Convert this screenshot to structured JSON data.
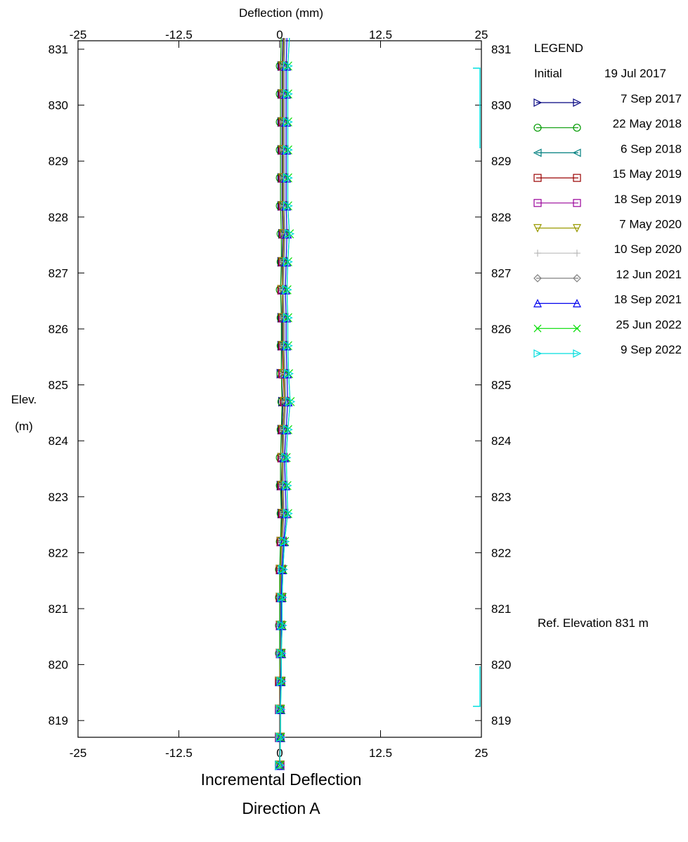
{
  "chart_data": {
    "type": "line",
    "top_axis_label": "Deflection (mm)",
    "y_axis_label_line1": "Elev.",
    "y_axis_label_line2": "(m)",
    "bottom_title_line1": "Incremental Deflection",
    "bottom_title_line2": "Direction  A",
    "legend_title": "LEGEND",
    "ref_note": "Ref. Elevation 831 m",
    "xlim": [
      -25,
      25
    ],
    "ylim": [
      818,
      831
    ],
    "x_ticks": [
      "-25",
      "-12.5",
      "0",
      "12.5",
      "25"
    ],
    "y_ticks": [
      "831",
      "830",
      "829",
      "828",
      "827",
      "826",
      "825",
      "824",
      "823",
      "822",
      "821",
      "820",
      "819"
    ],
    "initial": {
      "label": "Initial",
      "date": "19 Jul 2017"
    },
    "elevations": [
      818.2,
      818.7,
      819.2,
      819.7,
      820.2,
      820.7,
      821.2,
      821.7,
      822.2,
      822.7,
      823.2,
      823.7,
      824.2,
      824.7,
      825.2,
      825.7,
      826.2,
      826.7,
      827.2,
      827.7,
      828.2,
      828.7,
      829.2,
      829.7,
      830.2,
      830.7,
      831.2
    ],
    "series": [
      {
        "name": "7 Sep 2017",
        "color": "#00007f",
        "marker": "tri-right",
        "values": [
          0.0,
          0.0,
          0.0,
          0.0,
          0.1,
          0.1,
          0.1,
          0.1,
          0.2,
          0.3,
          0.2,
          0.3,
          0.3,
          0.4,
          0.2,
          0.3,
          0.3,
          0.3,
          0.3,
          0.4,
          0.3,
          0.3,
          0.3,
          0.3,
          0.3,
          0.3,
          0.4
        ]
      },
      {
        "name": "22 May 2018",
        "color": "#009900",
        "marker": "circle",
        "values": [
          0.0,
          0.0,
          0.0,
          0.0,
          0.0,
          0.0,
          0.0,
          0.0,
          0.1,
          0.2,
          0.1,
          0.1,
          0.2,
          0.3,
          0.2,
          0.2,
          0.2,
          0.1,
          0.2,
          0.2,
          0.1,
          0.1,
          0.1,
          0.1,
          0.1,
          0.1,
          0.2
        ]
      },
      {
        "name": "6 Sep 2018",
        "color": "#007f7f",
        "marker": "tri-left",
        "values": [
          0.0,
          0.0,
          0.0,
          0.1,
          0.1,
          0.1,
          0.1,
          0.2,
          0.3,
          0.5,
          0.4,
          0.4,
          0.5,
          0.7,
          0.6,
          0.5,
          0.5,
          0.4,
          0.5,
          0.6,
          0.5,
          0.5,
          0.5,
          0.5,
          0.5,
          0.5,
          0.6
        ]
      },
      {
        "name": "15 May 2019",
        "color": "#990000",
        "marker": "square-x",
        "values": [
          0.0,
          0.0,
          0.0,
          0.0,
          0.1,
          0.1,
          0.1,
          0.1,
          0.2,
          0.4,
          0.3,
          0.3,
          0.4,
          0.6,
          0.4,
          0.4,
          0.4,
          0.3,
          0.4,
          0.5,
          0.4,
          0.4,
          0.4,
          0.4,
          0.4,
          0.4,
          0.5
        ]
      },
      {
        "name": "18 Sep 2019",
        "color": "#990099",
        "marker": "square",
        "values": [
          0.0,
          0.0,
          0.0,
          0.1,
          0.1,
          0.1,
          0.2,
          0.2,
          0.3,
          0.5,
          0.4,
          0.4,
          0.5,
          0.7,
          0.5,
          0.5,
          0.5,
          0.4,
          0.5,
          0.6,
          0.5,
          0.5,
          0.5,
          0.5,
          0.5,
          0.5,
          0.6
        ]
      },
      {
        "name": "7 May 2020",
        "color": "#999900",
        "marker": "tri-down",
        "values": [
          0.0,
          0.0,
          0.0,
          0.0,
          0.1,
          0.1,
          0.1,
          0.1,
          0.2,
          0.4,
          0.3,
          0.3,
          0.4,
          0.6,
          0.5,
          0.4,
          0.4,
          0.3,
          0.4,
          0.5,
          0.4,
          0.4,
          0.4,
          0.4,
          0.4,
          0.4,
          0.5
        ]
      },
      {
        "name": "10 Sep 2020",
        "color": "#bbbbbb",
        "marker": "plus",
        "values": [
          0.0,
          0.0,
          0.1,
          0.1,
          0.1,
          0.2,
          0.2,
          0.2,
          0.4,
          0.6,
          0.5,
          0.5,
          0.6,
          0.8,
          0.7,
          0.6,
          0.6,
          0.5,
          0.6,
          0.7,
          0.6,
          0.6,
          0.6,
          0.6,
          0.6,
          0.6,
          0.7
        ]
      },
      {
        "name": "12 Jun 2021",
        "color": "#808080",
        "marker": "diamond",
        "values": [
          0.0,
          0.0,
          0.0,
          0.1,
          0.1,
          0.1,
          0.1,
          0.2,
          0.3,
          0.5,
          0.4,
          0.4,
          0.5,
          0.7,
          0.6,
          0.5,
          0.5,
          0.4,
          0.5,
          0.6,
          0.5,
          0.5,
          0.5,
          0.5,
          0.5,
          0.5,
          0.6
        ]
      },
      {
        "name": "18 Sep 2021",
        "color": "#0000ee",
        "marker": "tri-up",
        "values": [
          0.0,
          0.1,
          0.1,
          0.1,
          0.2,
          0.2,
          0.2,
          0.3,
          0.5,
          0.8,
          0.7,
          0.6,
          0.8,
          1.0,
          0.9,
          0.8,
          0.8,
          0.7,
          0.8,
          0.9,
          0.8,
          0.8,
          0.8,
          0.8,
          0.8,
          0.8,
          0.9
        ]
      },
      {
        "name": "25 Jun 2022",
        "color": "#00dd00",
        "marker": "x",
        "values": [
          0.0,
          0.1,
          0.1,
          0.2,
          0.2,
          0.3,
          0.3,
          0.4,
          0.6,
          1.0,
          0.9,
          0.8,
          1.0,
          1.3,
          1.1,
          1.0,
          1.0,
          0.9,
          1.0,
          1.2,
          1.0,
          1.0,
          1.0,
          1.0,
          1.0,
          1.0,
          1.2
        ]
      },
      {
        "name": "9 Sep 2022",
        "color": "#00dddd",
        "marker": "tri-right",
        "values": [
          0.0,
          0.1,
          0.1,
          0.2,
          0.2,
          0.3,
          0.3,
          0.4,
          0.6,
          1.0,
          0.9,
          0.8,
          1.0,
          1.3,
          1.1,
          1.0,
          1.0,
          0.9,
          1.0,
          1.2,
          1.0,
          1.0,
          1.0,
          1.0,
          1.0,
          1.0,
          1.2
        ]
      }
    ]
  }
}
